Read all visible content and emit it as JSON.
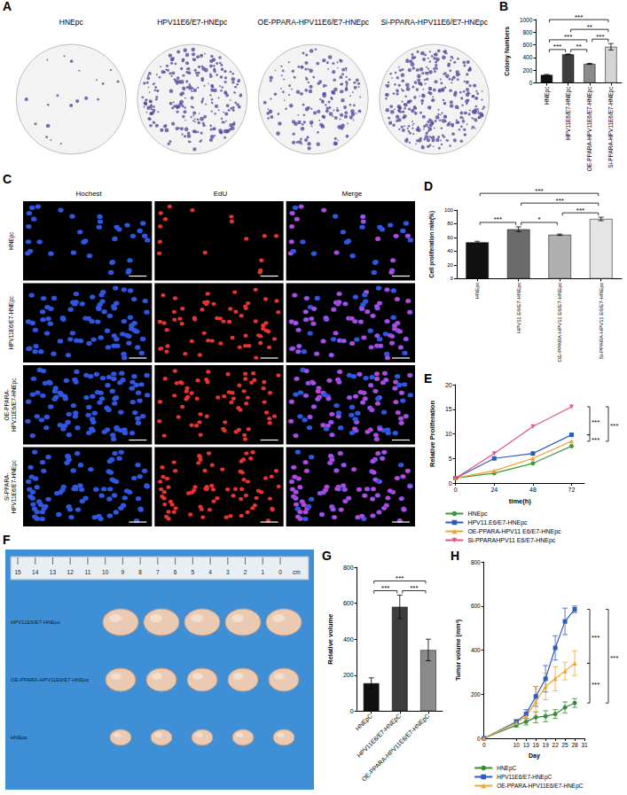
{
  "panels": {
    "A": {
      "letter": "A",
      "titles": [
        "HNEpc",
        "HPV11E6/E7-HNEpc",
        "OE-PPARA-HPV11E6/E7-HNEpc",
        "Si-PPARA-HPV11E6/E7-HNEpc"
      ]
    },
    "C": {
      "letter": "C",
      "columns": [
        "Hochest",
        "EdU",
        "Merge"
      ],
      "rows": [
        "HNEpc",
        "HPV11E6/E7-HNEpc",
        "OE-PPARA-HPV11E6/E7-HNEpc",
        "Si-PPARA-HPV11E6/E7-HNEpc"
      ]
    },
    "F": {
      "letter": "F",
      "ruler_labels": [
        15,
        14,
        13,
        12,
        11,
        10,
        9,
        8,
        7,
        6,
        5,
        4,
        3,
        2,
        1,
        0
      ],
      "ruler_unit": "cm",
      "rows": [
        "HPV11E6/E7-HNEpc",
        "OE-PPARA-HPV11E6/E7-HNEpc",
        "HNEpc"
      ]
    }
  },
  "chart_data": [
    {
      "panel": "B",
      "type": "bar",
      "ylabel": "Colony Numbers",
      "categories": [
        "HNEpc",
        "HPV11E6/E7-HNEpc",
        "OE-PPARA-HPV11E6/E7-HNEpc",
        "Si-PPARA-HPV11E6/E7-HNEpc"
      ],
      "values": [
        125,
        450,
        300,
        570
      ],
      "errors": [
        8,
        6,
        8,
        50
      ],
      "colors": [
        "#111111",
        "#3d3d3d",
        "#8a8a8a",
        "#d4d4d4"
      ],
      "ylim": [
        0,
        1000
      ],
      "yticks": [
        0,
        200,
        400,
        600,
        800,
        1000
      ],
      "grid": false,
      "data_labels": false,
      "significance": [
        {
          "pair": [
            0,
            1
          ],
          "label": "***"
        },
        {
          "pair": [
            1,
            2
          ],
          "label": "**"
        },
        {
          "pair": [
            2,
            3
          ],
          "label": "***"
        },
        {
          "pair": [
            0,
            2
          ],
          "label": "***"
        },
        {
          "pair": [
            1,
            3
          ],
          "label": "**"
        },
        {
          "pair": [
            0,
            3
          ],
          "label": "***"
        }
      ]
    },
    {
      "panel": "D",
      "type": "bar",
      "ylabel": "Cell proliferation rate(%)",
      "categories": [
        "HNEpc",
        "HPV11 E6/E7-HNEpc",
        "OE-PPARA-HPV11 E6/E7-HNEpc",
        "Si-PPARA-HPV11 E6/E7-HNEpc"
      ],
      "values": [
        53,
        72,
        64,
        87
      ],
      "errors": [
        1.5,
        3.5,
        1,
        2.5
      ],
      "colors": [
        "#111111",
        "#6b6b6b",
        "#b0b0b0",
        "#e5e5e5"
      ],
      "ylim": [
        0,
        100
      ],
      "yticks": [
        0,
        20,
        40,
        60,
        80,
        100
      ],
      "grid": false,
      "data_labels": false,
      "significance": [
        {
          "pair": [
            0,
            1
          ],
          "label": "***"
        },
        {
          "pair": [
            1,
            2
          ],
          "label": "*"
        },
        {
          "pair": [
            2,
            3
          ],
          "label": "***"
        },
        {
          "pair": [
            1,
            3
          ],
          "label": "***"
        },
        {
          "pair": [
            0,
            3
          ],
          "label": "***"
        }
      ]
    },
    {
      "panel": "E",
      "type": "line",
      "xlabel": "time(h)",
      "ylabel": "Relative Proliferation",
      "x": [
        0,
        24,
        48,
        72
      ],
      "xlim": [
        0,
        80
      ],
      "xticks": [
        0,
        24,
        48,
        72
      ],
      "ylim": [
        0,
        20
      ],
      "yticks": [
        0,
        5,
        10,
        15,
        20
      ],
      "grid": false,
      "legend": "bottom",
      "series": [
        {
          "name": "HNEpc",
          "color": "#3a9a3a",
          "marker": "circle",
          "values": [
            1,
            2,
            4,
            7.5
          ]
        },
        {
          "name": "HPV11.E6/E7-HNEpc",
          "color": "#2a5cbf",
          "marker": "square",
          "values": [
            1,
            5,
            6,
            9.8
          ]
        },
        {
          "name": "OE-PPARA-HPV11 E6/E7-HNEpc",
          "color": "#f0a030",
          "marker": "triangle",
          "values": [
            1,
            2.5,
            5,
            8.5
          ]
        },
        {
          "name": "Si-PPARAHPV11 E6/E7-HNEpc",
          "color": "#e8508a",
          "marker": "triangle-down",
          "values": [
            1,
            6,
            11.5,
            15.5
          ]
        }
      ],
      "significance": [
        {
          "pair": [
            3,
            1
          ],
          "label": "***"
        },
        {
          "pair": [
            1,
            2
          ],
          "label": "***"
        },
        {
          "pair": [
            3,
            2
          ],
          "label": "***"
        }
      ]
    },
    {
      "panel": "G",
      "type": "bar",
      "ylabel": "Relative volume",
      "categories": [
        "HNEpC",
        "HPV11E6/E7-HNEpC",
        "OE-PPARA-HPV11E6/E7-HNEpC"
      ],
      "values": [
        155,
        580,
        340
      ],
      "errors": [
        30,
        65,
        60
      ],
      "colors": [
        "#111111",
        "#3d3d3d",
        "#8a8a8a"
      ],
      "ylim": [
        0,
        800
      ],
      "yticks": [
        0,
        200,
        400,
        600,
        800
      ],
      "grid": false,
      "data_labels": false,
      "significance": [
        {
          "pair": [
            0,
            1
          ],
          "label": "***"
        },
        {
          "pair": [
            1,
            2
          ],
          "label": "***"
        },
        {
          "pair": [
            0,
            2
          ],
          "label": "***"
        }
      ]
    },
    {
      "panel": "H",
      "type": "line",
      "xlabel": "Day",
      "ylabel": "Tumor volume (mm³)",
      "x": [
        0,
        10,
        13,
        16,
        19,
        22,
        25,
        28
      ],
      "xlim": [
        0,
        31
      ],
      "xticks": [
        0,
        10,
        13,
        16,
        19,
        22,
        25,
        28,
        31
      ],
      "ylim": [
        0,
        800
      ],
      "yticks": [
        0,
        200,
        400,
        600,
        800
      ],
      "grid": false,
      "legend": "bottom",
      "series": [
        {
          "name": "HNEpC",
          "color": "#3a8a3a",
          "marker": "circle",
          "values": [
            0,
            60,
            75,
            95,
            100,
            110,
            140,
            160
          ],
          "errors": [
            0,
            10,
            15,
            25,
            25,
            20,
            25,
            20
          ]
        },
        {
          "name": "HPV11E6/E7-HNEpC",
          "color": "#2f5bbd",
          "marker": "square",
          "values": [
            0,
            75,
            110,
            190,
            270,
            410,
            530,
            585
          ],
          "errors": [
            0,
            10,
            20,
            45,
            60,
            55,
            60,
            15
          ]
        },
        {
          "name": "OE-PPARA-HPV11E6/E7-HNEpC",
          "color": "#f0a530",
          "marker": "triangle",
          "values": [
            0,
            70,
            100,
            165,
            235,
            270,
            305,
            340
          ],
          "errors": [
            0,
            10,
            20,
            70,
            60,
            55,
            40,
            55
          ]
        }
      ],
      "significance": [
        {
          "pair": [
            1,
            2
          ],
          "label": "***"
        },
        {
          "pair": [
            2,
            0
          ],
          "label": "***"
        },
        {
          "pair": [
            1,
            0
          ],
          "label": "***"
        }
      ]
    }
  ]
}
